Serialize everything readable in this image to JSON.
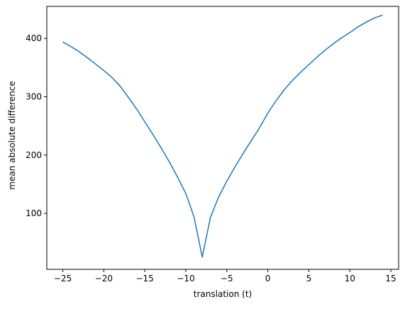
{
  "chart_data": {
    "type": "line",
    "title": "",
    "xlabel": "translation (t)",
    "ylabel": "mean absolute difference",
    "xlim": [
      -26.95,
      15.95
    ],
    "ylim": [
      4,
      455
    ],
    "xticks": [
      -25,
      -20,
      -15,
      -10,
      -5,
      0,
      5,
      10,
      15
    ],
    "xtick_labels": [
      "−25",
      "−20",
      "−15",
      "−10",
      "−5",
      "0",
      "5",
      "10",
      "15"
    ],
    "yticks": [
      100,
      200,
      300,
      400
    ],
    "ytick_labels": [
      "100",
      "200",
      "300",
      "400"
    ],
    "grid": false,
    "legend": "none",
    "colors": {
      "line": "#1f77b4",
      "axes": "#000000",
      "background": "#ffffff"
    },
    "series": [
      {
        "x": [
          -25,
          -24,
          -23,
          -22,
          -21,
          -20,
          -19,
          -18,
          -17,
          -16,
          -15,
          -14,
          -13,
          -12,
          -11,
          -10,
          -9,
          -8,
          -7,
          -6,
          -5,
          -4,
          -3,
          -2,
          -1,
          0,
          1,
          2,
          3,
          4,
          5,
          6,
          7,
          8,
          9,
          10,
          11,
          12,
          13,
          14
        ],
        "y": [
          394,
          386,
          377,
          367,
          356,
          345,
          333,
          318,
          299,
          279,
          257,
          235,
          212,
          188,
          162,
          134,
          94,
          25,
          93,
          128,
          155,
          180,
          203,
          225,
          247,
          272,
          293,
          312,
          328,
          342,
          355,
          368,
          380,
          391,
          401,
          410,
          420,
          428,
          435,
          440
        ]
      }
    ]
  }
}
